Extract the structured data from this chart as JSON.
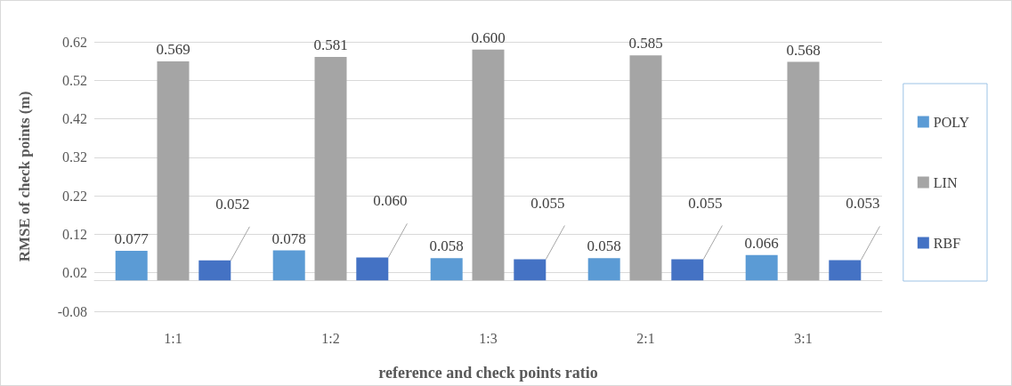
{
  "chart_data": {
    "type": "bar",
    "xlabel": "reference and check points ratio",
    "ylabel": "RMSE of check points (m)",
    "categories": [
      "1:1",
      "1:2",
      "1:3",
      "2:1",
      "3:1"
    ],
    "series": [
      {
        "name": "POLY",
        "color": "#5b9bd5",
        "values": [
          0.077,
          0.078,
          0.058,
          0.058,
          0.066
        ],
        "value_labels": [
          "0.077",
          "0.078",
          "0.058",
          "0.058",
          "0.066"
        ]
      },
      {
        "name": "LIN",
        "color": "#a5a5a5",
        "values": [
          0.569,
          0.581,
          0.6,
          0.585,
          0.568
        ],
        "value_labels": [
          "0.569",
          "0.581",
          "0.600",
          "0.585",
          "0.568"
        ]
      },
      {
        "name": "RBF",
        "color": "#4472c4",
        "values": [
          0.052,
          0.06,
          0.055,
          0.055,
          0.053
        ],
        "value_labels": [
          "0.052",
          "0.060",
          "0.055",
          "0.055",
          "0.053"
        ]
      }
    ],
    "ylim": [
      -0.08,
      0.62
    ],
    "yticks": [
      -0.08,
      0.02,
      0.12,
      0.22,
      0.32,
      0.42,
      0.52,
      0.62
    ],
    "grid": "y",
    "legend": "right"
  }
}
